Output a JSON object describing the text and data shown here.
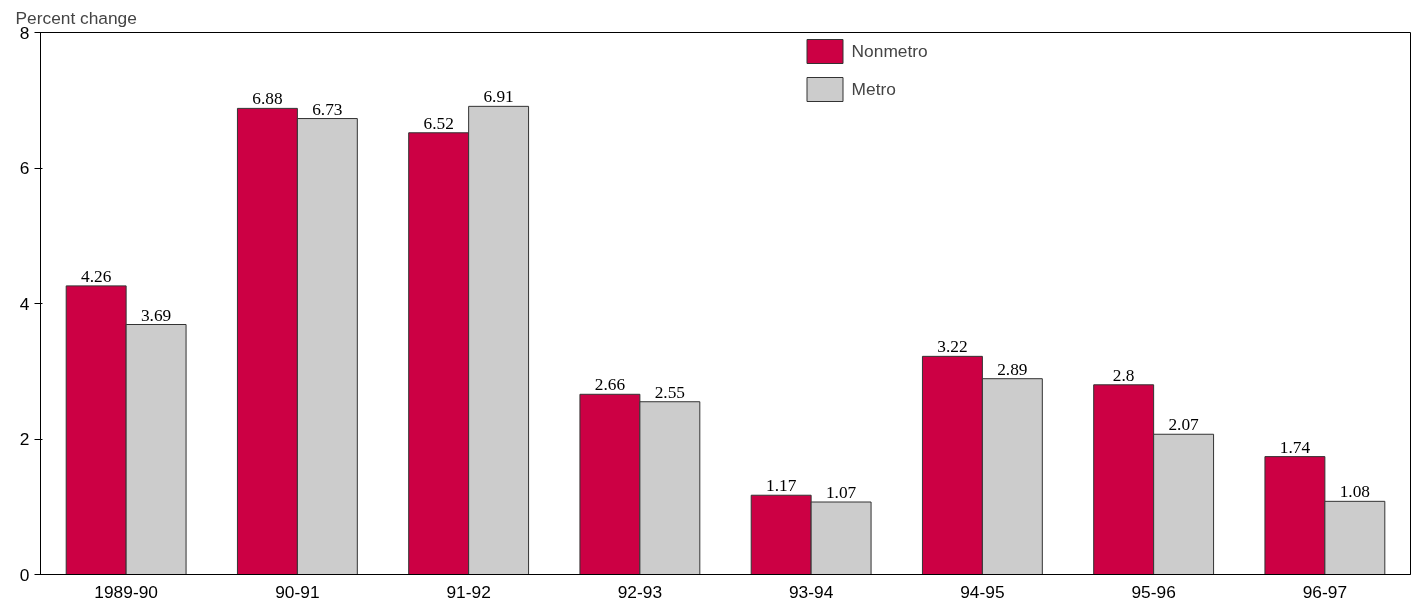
{
  "chart_data": {
    "type": "bar",
    "ylabel": "Percent change",
    "categories": [
      "1989-90",
      "90-91",
      "91-92",
      "92-93",
      "93-94",
      "94-95",
      "95-96",
      "96-97"
    ],
    "series": [
      {
        "name": "Nonmetro",
        "color": "#cc0044",
        "values": [
          4.26,
          6.88,
          6.52,
          2.66,
          1.17,
          3.22,
          2.8,
          1.74
        ]
      },
      {
        "name": "Metro",
        "color": "#cccccc",
        "values": [
          3.69,
          6.73,
          6.91,
          2.55,
          1.07,
          2.89,
          2.07,
          1.08
        ]
      }
    ],
    "ylim": [
      0,
      8
    ],
    "yticks": [
      0,
      2,
      4,
      6,
      8
    ],
    "data_labels": true,
    "legend": "top",
    "grid": false
  }
}
